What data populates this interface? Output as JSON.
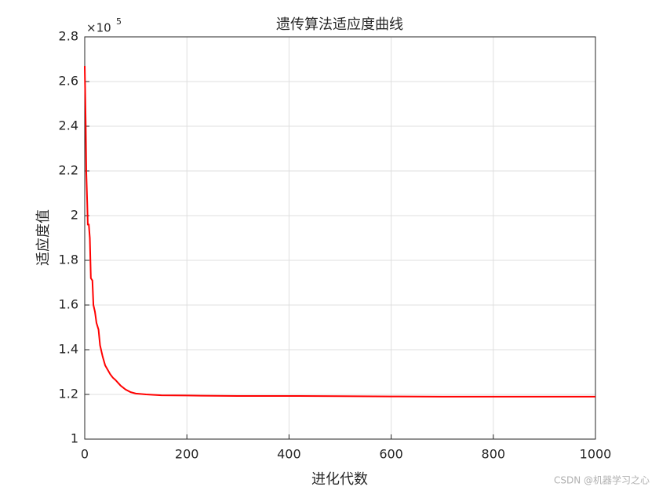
{
  "chart_data": {
    "type": "line",
    "title": "遗传算法适应度曲线",
    "x_label": "进化代数",
    "y_label": "适应度值",
    "y_multiplier": {
      "base": "×10",
      "exponent": "5"
    },
    "x": [
      0,
      2,
      3,
      5,
      6,
      8,
      10,
      12,
      15,
      17,
      20,
      23,
      27,
      30,
      35,
      40,
      45,
      50,
      55,
      60,
      70,
      80,
      90,
      100,
      120,
      150,
      200,
      300,
      400,
      500,
      600,
      700,
      800,
      1000
    ],
    "values": [
      2.67,
      2.4,
      2.2,
      2.05,
      1.96,
      1.96,
      1.9,
      1.72,
      1.71,
      1.6,
      1.57,
      1.52,
      1.49,
      1.42,
      1.37,
      1.33,
      1.31,
      1.29,
      1.275,
      1.265,
      1.24,
      1.222,
      1.21,
      1.204,
      1.2,
      1.196,
      1.195,
      1.193,
      1.193,
      1.192,
      1.191,
      1.19,
      1.19,
      1.19
    ],
    "color": "#ff0000",
    "xlim": [
      0,
      1000
    ],
    "xticks": [
      0,
      200,
      400,
      600,
      800,
      1000
    ],
    "ylim": [
      1,
      2.8
    ],
    "yticks": [
      1,
      1.2,
      1.4,
      1.6,
      1.8,
      2,
      2.2,
      2.4,
      2.6,
      2.8
    ],
    "grid": true
  },
  "watermark": "CSDN @机器学习之心"
}
